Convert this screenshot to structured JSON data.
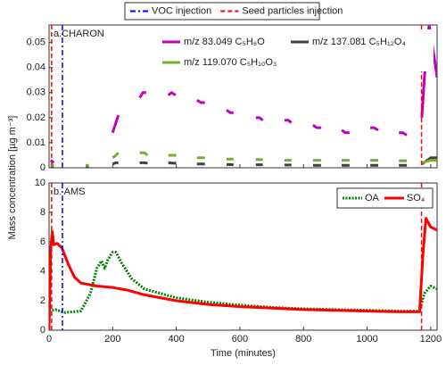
{
  "chart_data": [
    {
      "type": "line",
      "annotation": "a.CHARON",
      "xlim": [
        0,
        1220
      ],
      "xticks": [
        0,
        200,
        400,
        600,
        800,
        1000,
        1200
      ],
      "ylim": [
        0,
        0.057
      ],
      "yticks": [
        0,
        0.01,
        0.02,
        0.03,
        0.04,
        0.05
      ],
      "vlines": [
        {
          "name": "VOC injection",
          "color": "#0000ff",
          "values": [
            42
          ]
        },
        {
          "name": "Seed particles injection",
          "color": "#ff0000",
          "values": [
            8,
            1171
          ]
        }
      ],
      "series": [
        {
          "name": "m/z 83.049 C₅H₆O",
          "color": "#c000c0",
          "x": [
            5,
            15,
            null,
            200,
            210,
            218,
            null,
            285,
            295,
            305,
            null,
            375,
            385,
            398,
            null,
            465,
            478,
            490,
            null,
            558,
            570,
            580,
            null,
            650,
            662,
            672,
            null,
            740,
            752,
            762,
            null,
            830,
            842,
            855,
            null,
            920,
            932,
            945,
            null,
            1010,
            1022,
            1035,
            null,
            1100,
            1112,
            1125,
            null,
            1172,
            1185,
            1195,
            1210,
            1220
          ],
          "values": [
            0.003,
            0.002,
            null,
            0.014,
            0.018,
            0.021,
            null,
            0.028,
            0.03,
            0.03,
            null,
            0.029,
            0.03,
            0.029,
            null,
            0.027,
            0.026,
            0.026,
            null,
            0.023,
            0.022,
            0.022,
            null,
            0.02,
            0.02,
            0.019,
            null,
            0.019,
            0.019,
            0.018,
            null,
            0.017,
            0.016,
            0.016,
            null,
            0.015,
            0.014,
            0.014,
            null,
            0.016,
            0.016,
            0.015,
            null,
            0.014,
            0.014,
            0.013,
            null,
            0.02,
            0.045,
            0.057,
            0.045,
            0.036
          ]
        },
        {
          "name": "m/z 137.081 C₅H₁₂O₄",
          "color": "#404040",
          "x": [
            5,
            15,
            null,
            115,
            125,
            null,
            200,
            210,
            218,
            null,
            285,
            300,
            310,
            null,
            375,
            390,
            400,
            null,
            465,
            480,
            490,
            null,
            558,
            570,
            580,
            null,
            650,
            662,
            672,
            null,
            740,
            752,
            762,
            null,
            830,
            842,
            855,
            null,
            920,
            932,
            945,
            null,
            1010,
            1022,
            1035,
            null,
            1100,
            1112,
            1125,
            null,
            1172,
            1200,
            1220
          ],
          "values": [
            0.0005,
            0.0005,
            null,
            0.0005,
            0.0005,
            null,
            0.0015,
            0.002,
            0.002,
            null,
            0.002,
            0.002,
            0.0018,
            null,
            0.002,
            0.0018,
            0.0018,
            null,
            0.0015,
            0.0015,
            0.0015,
            null,
            0.0013,
            0.0013,
            0.0012,
            null,
            0.0012,
            0.0012,
            0.0012,
            null,
            0.0011,
            0.0011,
            0.0011,
            null,
            0.001,
            0.001,
            0.001,
            null,
            0.001,
            0.001,
            0.001,
            null,
            0.001,
            0.001,
            0.001,
            null,
            0.001,
            0.001,
            0.001,
            null,
            0.0015,
            0.004,
            0.004
          ]
        },
        {
          "name": "m/z 119.070 C₅H₁₀O₃",
          "color": "#70b030",
          "x": [
            5,
            15,
            null,
            115,
            125,
            null,
            200,
            210,
            218,
            null,
            285,
            300,
            310,
            null,
            375,
            390,
            400,
            null,
            465,
            480,
            490,
            null,
            558,
            570,
            580,
            null,
            650,
            662,
            672,
            null,
            740,
            752,
            762,
            null,
            830,
            842,
            855,
            null,
            920,
            932,
            945,
            null,
            1010,
            1022,
            1035,
            null,
            1100,
            1112,
            1125,
            null,
            1172,
            1200,
            1220
          ],
          "values": [
            0.001,
            0.001,
            null,
            0.001,
            0.001,
            null,
            0.004,
            0.005,
            0.006,
            null,
            0.006,
            0.006,
            0.005,
            null,
            0.005,
            0.005,
            0.005,
            null,
            0.004,
            0.004,
            0.004,
            null,
            0.0035,
            0.0035,
            0.0035,
            null,
            0.0033,
            0.0033,
            0.0032,
            null,
            0.003,
            0.003,
            0.003,
            null,
            0.003,
            0.003,
            0.003,
            null,
            0.003,
            0.003,
            0.003,
            null,
            0.003,
            0.003,
            0.003,
            null,
            0.0028,
            0.0028,
            0.0028,
            null,
            0.002,
            0.003,
            0.003
          ]
        }
      ]
    },
    {
      "type": "line",
      "annotation": "b. AMS",
      "xlabel": "Time (minutes)",
      "ylabel": "Mass concentration [µg m⁻³]",
      "xlim": [
        0,
        1220
      ],
      "xticks": [
        0,
        200,
        400,
        600,
        800,
        1000,
        1200
      ],
      "ylim": [
        0,
        10
      ],
      "yticks": [
        0,
        2,
        4,
        6,
        8,
        10
      ],
      "vlines": [
        {
          "name": "VOC injection",
          "color": "#0000ff",
          "values": [
            42
          ]
        },
        {
          "name": "Seed particles injection",
          "color": "#ff0000",
          "values": [
            8,
            1171
          ]
        }
      ],
      "series": [
        {
          "name": "OA",
          "color": "#008000",
          "dash": true,
          "x": [
            0,
            20,
            50,
            100,
            130,
            150,
            165,
            175,
            185,
            200,
            210,
            230,
            260,
            300,
            400,
            500,
            600,
            700,
            800,
            900,
            1000,
            1100,
            1165,
            1180,
            1200,
            1220
          ],
          "values": [
            1.3,
            1.4,
            1.2,
            1.3,
            2.5,
            4.2,
            4.7,
            4.2,
            4.8,
            5.3,
            5.3,
            4.5,
            3.5,
            2.8,
            2.2,
            1.9,
            1.7,
            1.55,
            1.45,
            1.4,
            1.35,
            1.3,
            1.3,
            2.5,
            3.0,
            2.8
          ]
        },
        {
          "name": "SO₄",
          "color": "#ff0000",
          "dash": false,
          "x": [
            0,
            5,
            10,
            15,
            25,
            40,
            60,
            80,
            100,
            150,
            200,
            250,
            300,
            400,
            500,
            600,
            700,
            800,
            900,
            1000,
            1100,
            1165,
            1175,
            1185,
            1200,
            1220
          ],
          "values": [
            0,
            5.5,
            6.7,
            5.8,
            5.9,
            5.6,
            4.5,
            3.6,
            3.2,
            3.0,
            2.9,
            2.7,
            2.4,
            2.0,
            1.75,
            1.6,
            1.5,
            1.4,
            1.35,
            1.3,
            1.25,
            1.25,
            5,
            7.6,
            7.0,
            6.8
          ]
        }
      ]
    }
  ]
}
